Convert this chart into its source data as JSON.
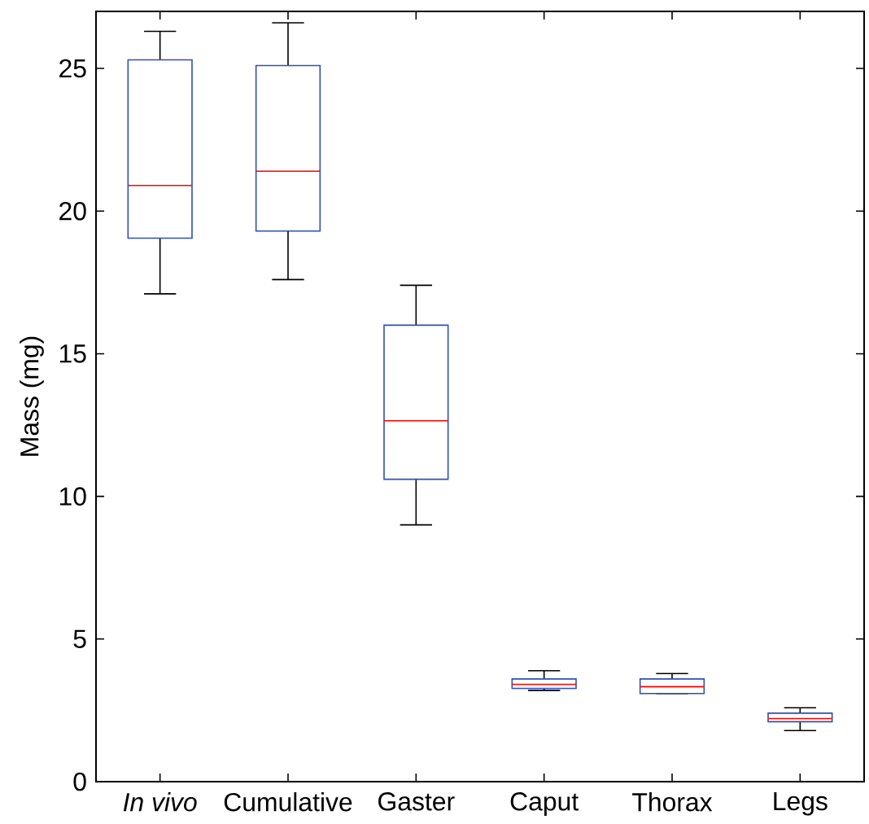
{
  "chart_data": {
    "type": "box",
    "ylabel": "Mass (mg)",
    "categories": [
      "*In vivo*",
      "Cumulative",
      "Gaster",
      "Caput",
      "Thorax",
      "Legs"
    ],
    "color": "#2e4fb8",
    "boxes": [
      {
        "low": 17.1,
        "q1": 19.05,
        "median": 20.9,
        "q3": 25.3,
        "high": 26.3
      },
      {
        "low": 17.6,
        "q1": 19.3,
        "median": 21.4,
        "q3": 25.1,
        "high": 26.6
      },
      {
        "low": 9.0,
        "q1": 10.6,
        "median": 12.65,
        "q3": 16.0,
        "high": 17.4
      },
      {
        "low": 3.2,
        "q1": 3.27,
        "median": 3.41,
        "q3": 3.6,
        "high": 3.89
      },
      {
        "low": 3.09,
        "q1": 3.09,
        "median": 3.33,
        "q3": 3.6,
        "high": 3.79
      },
      {
        "low": 1.79,
        "q1": 2.1,
        "median": 2.21,
        "q3": 2.4,
        "high": 2.59
      }
    ],
    "ylim": [
      0,
      27
    ],
    "yticks": [
      0,
      5,
      10,
      15,
      20,
      25
    ]
  }
}
